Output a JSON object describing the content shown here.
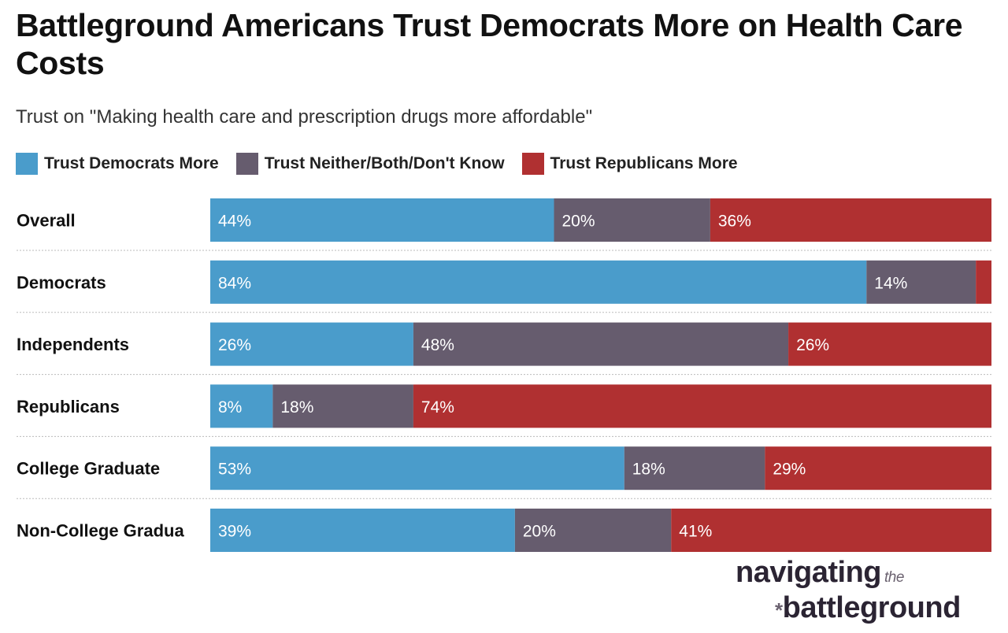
{
  "chart_data": {
    "type": "bar",
    "orientation": "horizontal",
    "stacked": true,
    "title": "Battleground Americans Trust Democrats More on Health Care Costs",
    "subtitle": "Trust on \"Making health care and prescription drugs more affordable\"",
    "categories": [
      "Overall",
      "Democrats",
      "Independents",
      "Republicans",
      "College Graduate",
      "Non-College Gradua"
    ],
    "series": [
      {
        "name": "Trust Democrats More",
        "color": "#4a9ccb",
        "values": [
          44,
          84,
          26,
          8,
          53,
          39
        ]
      },
      {
        "name": "Trust Neither/Both/Don't Know",
        "color": "#665c6e",
        "values": [
          20,
          14,
          48,
          18,
          18,
          20
        ]
      },
      {
        "name": "Trust Republicans More",
        "color": "#b03031",
        "values": [
          36,
          2,
          26,
          74,
          29,
          41
        ]
      }
    ],
    "xlim": [
      0,
      100
    ],
    "unit": "%",
    "legend": "top-left",
    "grid": false
  },
  "logo": {
    "line1": "navigating",
    "the": "the",
    "line2": "battleground"
  }
}
